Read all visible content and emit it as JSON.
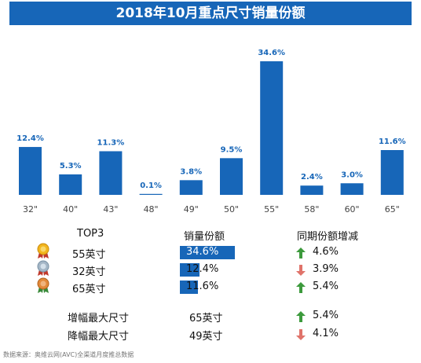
{
  "title": "2018年10月重点尺寸销量份额",
  "chart_data": {
    "type": "bar",
    "categories": [
      "32\"",
      "40\"",
      "43\"",
      "48\"",
      "49\"",
      "50\"",
      "55\"",
      "58\"",
      "60\"",
      "65\""
    ],
    "values": [
      12.4,
      5.3,
      11.3,
      0.1,
      3.8,
      9.5,
      34.6,
      2.4,
      3.0,
      11.6
    ],
    "value_labels": [
      "12.4%",
      "5.3%",
      "11.3%",
      "0.1%",
      "3.8%",
      "9.5%",
      "34.6%",
      "2.4%",
      "3.0%",
      "11.6%"
    ],
    "ylim": [
      0,
      35
    ],
    "grid": false,
    "bar_color": "#1766b8"
  },
  "table": {
    "headers": {
      "rank": "TOP3",
      "share": "销量份额",
      "change": "同期份额增减"
    },
    "rows": [
      {
        "size": "55英寸",
        "share": 34.6,
        "share_label": "34.6%",
        "change": "4.6%",
        "direction": "up",
        "medal": "gold-medal-icon"
      },
      {
        "size": "32英寸",
        "share": 12.4,
        "share_label": "12.4%",
        "change": "3.9%",
        "direction": "down",
        "medal": "silver-medal-icon"
      },
      {
        "size": "65英寸",
        "share": 11.6,
        "share_label": "11.6%",
        "change": "5.4%",
        "direction": "up",
        "medal": "bronze-medal-icon"
      }
    ],
    "summary": [
      {
        "label": "增幅最大尺寸",
        "size": "65英寸",
        "change": "5.4%",
        "direction": "up"
      },
      {
        "label": "降幅最大尺寸",
        "size": "49英寸",
        "change": "4.1%",
        "direction": "down"
      }
    ]
  },
  "colors": {
    "up": "#3c9a3c",
    "down": "#e0736a",
    "gold": "#f2b51d",
    "silver": "#a4b6c6",
    "bronze": "#e2893a"
  },
  "source": "数据来源：奥维云网(AVC)全渠道月度推总数据"
}
